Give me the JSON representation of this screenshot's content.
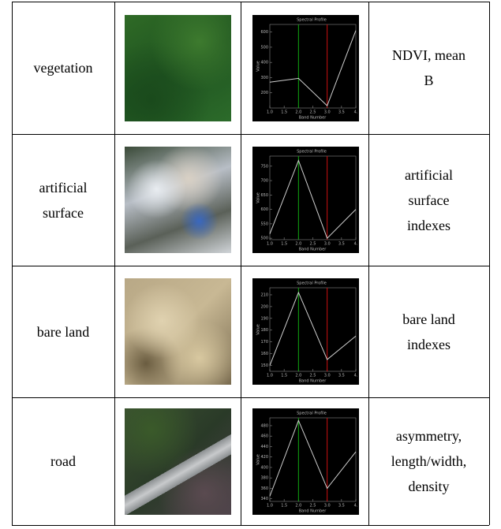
{
  "table": {
    "rows": [
      {
        "class_lines": [
          "vegetation"
        ],
        "profile": {
          "title": "Spectral Profile",
          "xlabel": "Band Number",
          "ylabel": "Value",
          "x": [
            1,
            2,
            3,
            4
          ],
          "values": [
            270,
            295,
            115,
            610
          ],
          "xlim": [
            1,
            4
          ],
          "ylim": [
            100,
            650
          ],
          "xticks": [
            {
              "value": 1,
              "label": "1.0"
            },
            1.5,
            {
              "value": 2,
              "label": "2.0"
            },
            2.5,
            {
              "value": 3,
              "label": "3.0"
            },
            3.5,
            {
              "value": 4,
              "label": "4."
            }
          ],
          "yticks": [
            200,
            300,
            400,
            500,
            600
          ],
          "band_markers": [
            {
              "value": 2,
              "color": "#11aa11"
            },
            {
              "value": 3,
              "color": "#cc1111"
            }
          ],
          "color": "#cfcfcf"
        },
        "feature_lines": [
          "NDVI, mean",
          "B"
        ]
      },
      {
        "class_lines": [
          "artificial",
          "surface"
        ],
        "profile": {
          "title": "Spectral Profile",
          "xlabel": "Band Number",
          "ylabel": "Value",
          "x": [
            1,
            2,
            3,
            4
          ],
          "values": [
            515,
            770,
            500,
            600
          ],
          "xlim": [
            1,
            4
          ],
          "ylim": [
            495,
            785
          ],
          "xticks": [
            {
              "value": 1,
              "label": "1.0"
            },
            1.5,
            {
              "value": 2,
              "label": "2.0"
            },
            2.5,
            {
              "value": 3,
              "label": "3.0"
            },
            3.5,
            {
              "value": 4,
              "label": "4."
            }
          ],
          "yticks": [
            500,
            550,
            600,
            650,
            700,
            750
          ],
          "band_markers": [
            {
              "value": 2,
              "color": "#11aa11"
            },
            {
              "value": 3,
              "color": "#cc1111"
            }
          ],
          "color": "#cfcfcf"
        },
        "feature_lines": [
          "artificial",
          "surface",
          "indexes"
        ]
      },
      {
        "class_lines": [
          "bare land"
        ],
        "profile": {
          "title": "Spectral Profile",
          "xlabel": "Band Number",
          "ylabel": "Value",
          "x": [
            1,
            2,
            3,
            4
          ],
          "values": [
            150,
            212,
            155,
            175
          ],
          "xlim": [
            1,
            4
          ],
          "ylim": [
            145,
            216
          ],
          "xticks": [
            {
              "value": 1,
              "label": "1.0"
            },
            1.5,
            {
              "value": 2,
              "label": "2.0"
            },
            2.5,
            {
              "value": 3,
              "label": "3.0"
            },
            3.5,
            {
              "value": 4,
              "label": "4."
            }
          ],
          "yticks": [
            150,
            160,
            170,
            180,
            190,
            200,
            210
          ],
          "band_markers": [
            {
              "value": 2,
              "color": "#11aa11"
            },
            {
              "value": 3,
              "color": "#cc1111"
            }
          ],
          "color": "#cfcfcf"
        },
        "feature_lines": [
          "bare land",
          "indexes"
        ]
      },
      {
        "class_lines": [
          "road"
        ],
        "profile": {
          "title": "Spectral Profile",
          "xlabel": "Band Number",
          "ylabel": "Value",
          "x": [
            1,
            2,
            3,
            4
          ],
          "values": [
            345,
            490,
            360,
            430
          ],
          "xlim": [
            1,
            4
          ],
          "ylim": [
            335,
            495
          ],
          "xticks": [
            {
              "value": 1,
              "label": "1.0"
            },
            1.5,
            {
              "value": 2,
              "label": "2.0"
            },
            2.5,
            {
              "value": 3,
              "label": "3.0"
            },
            3.5,
            {
              "value": 4,
              "label": "4."
            }
          ],
          "yticks": [
            340,
            360,
            380,
            400,
            420,
            440,
            460,
            480
          ],
          "band_markers": [
            {
              "value": 2,
              "color": "#11aa11"
            },
            {
              "value": 3,
              "color": "#cc1111"
            }
          ],
          "color": "#cfcfcf"
        },
        "feature_lines": [
          "asymmetry,",
          "length/width,",
          "density"
        ]
      }
    ]
  }
}
